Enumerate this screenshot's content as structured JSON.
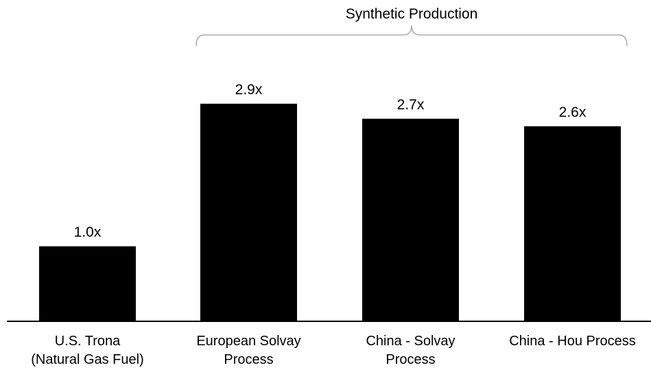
{
  "chart_data": {
    "type": "bar",
    "title": "",
    "xlabel": "",
    "ylabel": "",
    "categories": [
      [
        "U.S. Trona",
        "(Natural Gas Fuel)"
      ],
      [
        "European Solvay",
        "Process"
      ],
      [
        "China - Solvay",
        "Process"
      ],
      [
        "China - Hou Process"
      ]
    ],
    "values": [
      1.0,
      2.9,
      2.7,
      2.6
    ],
    "data_labels": [
      "1.0x",
      "2.9x",
      "2.7x",
      "2.6x"
    ],
    "ylim": [
      0,
      3.8
    ],
    "grid": false,
    "legend": "none",
    "bar_color": "#000000",
    "annotations": [
      {
        "type": "bracket",
        "text": "Synthetic Production",
        "from_category": 1,
        "to_category": 3,
        "color": "#aaaaaa"
      }
    ]
  }
}
